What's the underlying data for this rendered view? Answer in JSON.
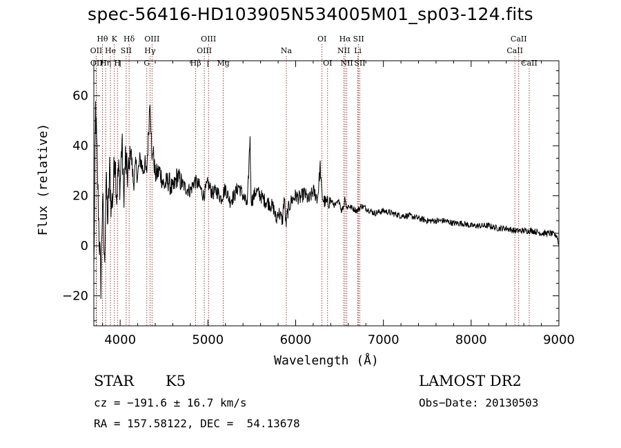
{
  "title": "spec-56416-HD103905N534005M01_sp03-124.fits",
  "chart_data": {
    "type": "line",
    "xlabel": "Wavelength (Å)",
    "ylabel": "Flux (relative)",
    "xlim": [
      3700,
      9000
    ],
    "ylim": [
      -32,
      74
    ],
    "xticks": [
      4000,
      5000,
      6000,
      7000,
      8000,
      9000
    ],
    "yticks": [
      -20,
      0,
      20,
      40,
      60
    ],
    "grid": false,
    "series": [
      {
        "x": [
          3700,
          3720,
          3740,
          3760,
          3780,
          3800,
          3820,
          3840,
          3860,
          3880,
          3900,
          3920,
          3940,
          3960,
          3980,
          4000,
          4020,
          4040,
          4060,
          4080,
          4100,
          4120,
          4150,
          4180,
          4200,
          4230,
          4260,
          4280,
          4300,
          4320,
          4340,
          4355,
          4362,
          4370,
          4400,
          4450,
          4500,
          4550,
          4600,
          4650,
          4700,
          4750,
          4800,
          4850,
          4900,
          4950,
          5000,
          5050,
          5100,
          5150,
          5200,
          5250,
          5300,
          5350,
          5400,
          5450,
          5480,
          5490,
          5500,
          5550,
          5600,
          5650,
          5700,
          5750,
          5780,
          5800,
          5850,
          5870,
          5890,
          5900,
          5920,
          5950,
          6000,
          6050,
          6100,
          6150,
          6200,
          6250,
          6280,
          6290,
          6300,
          6320,
          6350,
          6400,
          6450,
          6500,
          6520,
          6550,
          6563,
          6580,
          6600,
          6650,
          6700,
          6750,
          6800,
          6900,
          7000,
          7100,
          7200,
          7300,
          7400,
          7500,
          7600,
          7700,
          7800,
          7900,
          8000,
          8100,
          8200,
          8300,
          8400,
          8500,
          8600,
          8700,
          8800,
          8900,
          8980,
          9000
        ],
        "y": [
          -10,
          55,
          30,
          5,
          -15,
          20,
          -8,
          25,
          10,
          30,
          15,
          22,
          38,
          20,
          30,
          25,
          42,
          20,
          35,
          28,
          30,
          40,
          25,
          32,
          28,
          35,
          30,
          33,
          28,
          42,
          60,
          45,
          30,
          40,
          28,
          30,
          24,
          26,
          22,
          28,
          25,
          23,
          22,
          26,
          24,
          20,
          25,
          21,
          22,
          19,
          23,
          18,
          20,
          24,
          20,
          16,
          44,
          20,
          18,
          22,
          20,
          18,
          17,
          15,
          10,
          14,
          10,
          20,
          8,
          12,
          15,
          18,
          20,
          19,
          21,
          18,
          22,
          19,
          32,
          25,
          20,
          18,
          17,
          18,
          16,
          18,
          14,
          16,
          20,
          15,
          16,
          15,
          14,
          16,
          15,
          13,
          14,
          13,
          12,
          12,
          11,
          10,
          10,
          10,
          9,
          9,
          8,
          8,
          8,
          7,
          7,
          6,
          6,
          6,
          5,
          5,
          4,
          0
        ]
      }
    ],
    "lines": [
      {
        "label": "Hθ",
        "wavelength": 3798,
        "row": 1
      },
      {
        "label": "OII",
        "wavelength": 3727,
        "row": 2
      },
      {
        "label": "OII",
        "wavelength": 3729,
        "row": 3
      },
      {
        "label": "Hη",
        "wavelength": 3835,
        "row": 3
      },
      {
        "label": "He",
        "wavelength": 3889,
        "row": 2
      },
      {
        "label": "K",
        "wavelength": 3934,
        "row": 1
      },
      {
        "label": "SII",
        "wavelength": 4069,
        "row": 2
      },
      {
        "label": "H",
        "wavelength": 3969,
        "row": 3
      },
      {
        "label": "Hδ",
        "wavelength": 4102,
        "row": 1
      },
      {
        "label": "OIII",
        "wavelength": 4363,
        "row": 1
      },
      {
        "label": "Hγ",
        "wavelength": 4340,
        "row": 2
      },
      {
        "label": "G",
        "wavelength": 4304,
        "row": 3
      },
      {
        "label": "Hβ",
        "wavelength": 4861,
        "row": 3
      },
      {
        "label": "OIII",
        "wavelength": 4959,
        "row": 2
      },
      {
        "label": "OIII",
        "wavelength": 5007,
        "row": 1
      },
      {
        "label": "Mg",
        "wavelength": 5175,
        "row": 3
      },
      {
        "label": "Na",
        "wavelength": 5894,
        "row": 2
      },
      {
        "label": "OI",
        "wavelength": 6300,
        "row": 1
      },
      {
        "label": "OI",
        "wavelength": 6364,
        "row": 3
      },
      {
        "label": "Hα",
        "wavelength": 6563,
        "row": 1
      },
      {
        "label": "NII",
        "wavelength": 6548,
        "row": 2
      },
      {
        "label": "NII",
        "wavelength": 6583,
        "row": 3
      },
      {
        "label": "SII",
        "wavelength": 6717,
        "row": 1
      },
      {
        "label": "Li",
        "wavelength": 6708,
        "row": 2
      },
      {
        "label": "SII",
        "wavelength": 6731,
        "row": 3
      },
      {
        "label": "CaII",
        "wavelength": 8542,
        "row": 1
      },
      {
        "label": "CaII",
        "wavelength": 8498,
        "row": 2
      },
      {
        "label": "CaII",
        "wavelength": 8662,
        "row": 3
      }
    ],
    "line_color": "#8B0000"
  },
  "info": {
    "class": "STAR",
    "subclass": "K5",
    "survey": "LAMOST DR2",
    "cz": "cz = −191.6 ± 16.7 km/s",
    "obs_date": "Obs−Date: 20130503",
    "radec": "RA = 157.58122, DEC =  54.13678"
  }
}
